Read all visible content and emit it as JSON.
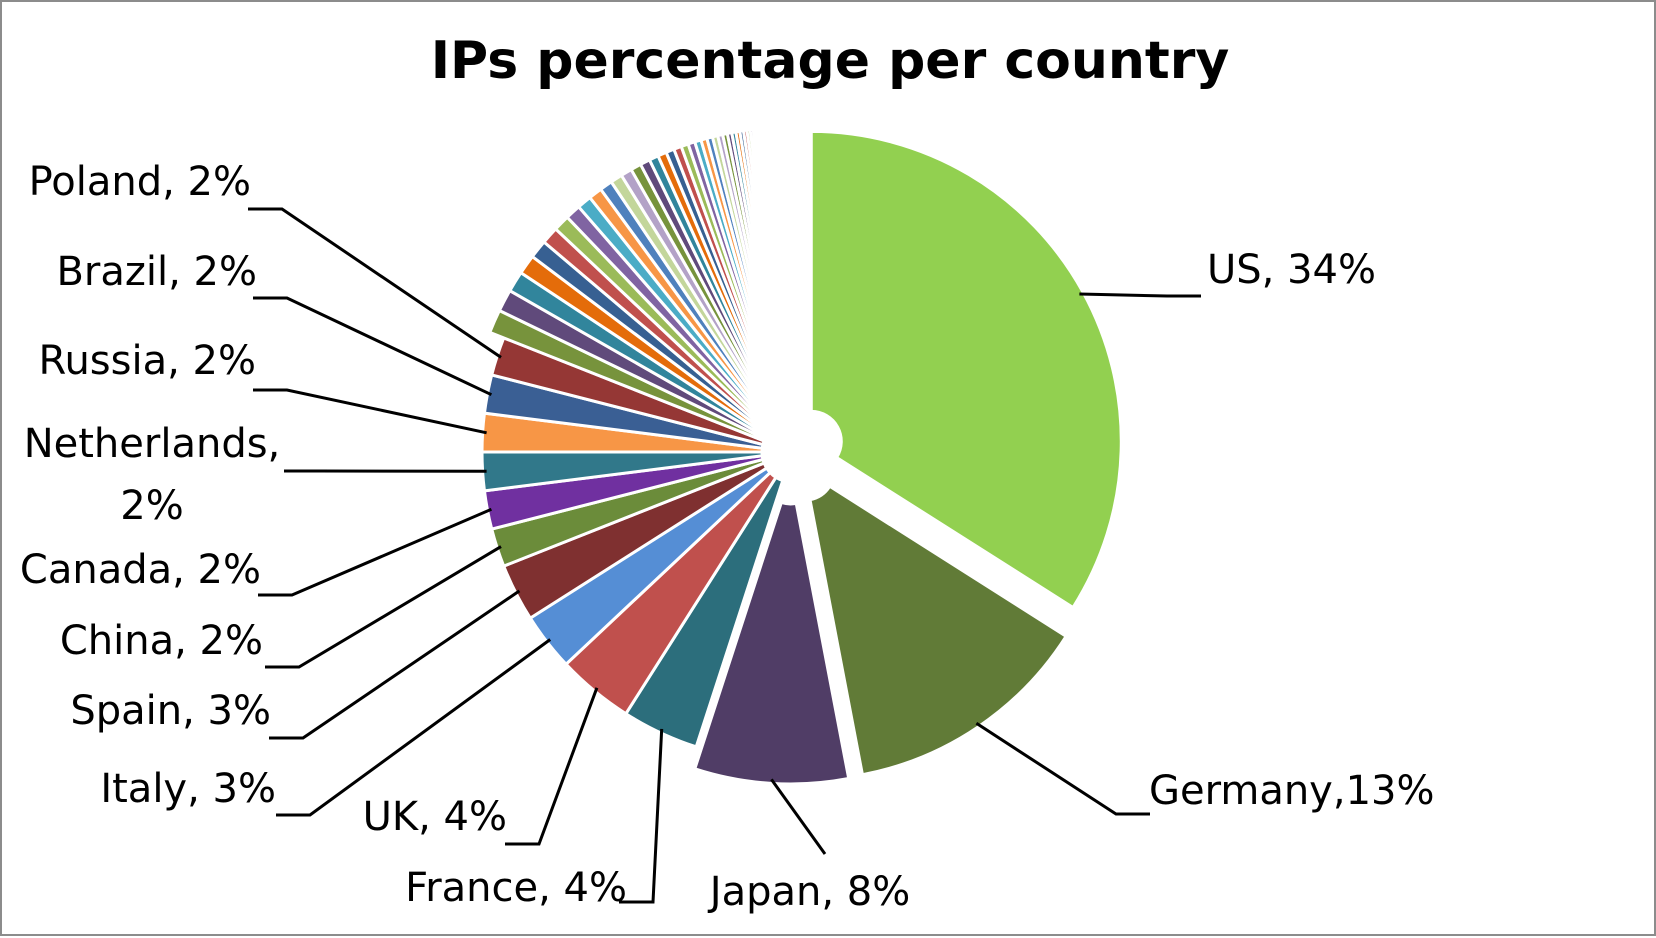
{
  "chart_data": {
    "type": "pie",
    "title": "IPs percentage per country",
    "slices": [
      {
        "category": "US",
        "value": 34,
        "color": "#92d050",
        "label": "US, 34%",
        "exploded": true
      },
      {
        "category": "Germany",
        "value": 13,
        "color": "#617b37",
        "label": "Germany,13%",
        "exploded": true
      },
      {
        "category": "Japan",
        "value": 8,
        "color": "#503d66",
        "label": "Japan, 8%",
        "exploded": true
      },
      {
        "category": "France",
        "value": 4,
        "color": "#2c6e7c",
        "label": "France, 4%"
      },
      {
        "category": "UK",
        "value": 4,
        "color": "#c0504d",
        "label": "UK, 4%"
      },
      {
        "category": "Italy",
        "value": 3,
        "color": "#558ed5",
        "label": "Italy, 3%"
      },
      {
        "category": "Spain",
        "value": 3,
        "color": "#7f3030",
        "label": "Spain, 3%"
      },
      {
        "category": "China",
        "value": 2,
        "color": "#6b8c3a",
        "label": "China, 2%"
      },
      {
        "category": "Canada",
        "value": 2,
        "color": "#7030a0",
        "label": "Canada, 2%"
      },
      {
        "category": "Netherlands",
        "value": 2,
        "color": "#31788a",
        "label": "Netherlands, 2%"
      },
      {
        "category": "Russia",
        "value": 2,
        "color": "#f79646",
        "label": "Russia, 2%"
      },
      {
        "category": "Brazil",
        "value": 2,
        "color": "#3a5f94",
        "label": "Brazil, 2%"
      },
      {
        "category": "Poland",
        "value": 2,
        "color": "#953735",
        "label": "Poland, 2%"
      }
    ],
    "other_slices_value": 19,
    "other_slices_colors": [
      "#77933c",
      "#604a7b",
      "#31859c",
      "#e46c0a",
      "#376092",
      "#c0504d",
      "#9bbb59",
      "#8064a2",
      "#4bacc6",
      "#f79646",
      "#4f81bd",
      "#c3d69b",
      "#b3a2c7"
    ],
    "legend": "none",
    "data_labels": "outside-with-leader-lines"
  }
}
